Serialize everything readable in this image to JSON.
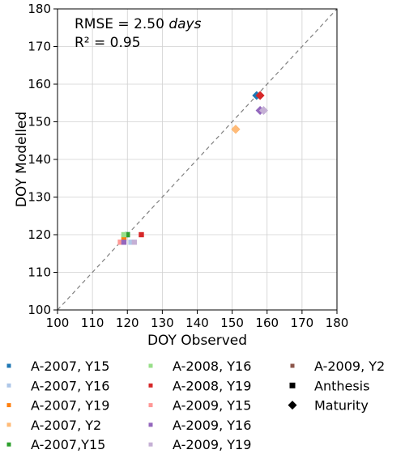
{
  "chart_data": {
    "type": "scatter",
    "title": "",
    "xlabel": "DOY Observed",
    "ylabel": "DOY Modelled",
    "xlim": [
      100,
      180
    ],
    "ylim": [
      100,
      180
    ],
    "xticks": [
      100,
      110,
      120,
      130,
      140,
      150,
      160,
      170,
      180
    ],
    "yticks": [
      100,
      110,
      120,
      130,
      140,
      150,
      160,
      170,
      180
    ],
    "grid": true,
    "reference_line": "1:1 dashed",
    "annotations": {
      "rmse_prefix": "RMSE = 2.50 ",
      "rmse_unit": "days",
      "r2": "R² = 0.95"
    },
    "legend_placement": "below",
    "series": [
      {
        "name": "A-2007, Y15",
        "color": "#1f77b4",
        "anthesis": [
          [
            120,
            120
          ]
        ],
        "maturity": [
          [
            157,
            157
          ]
        ]
      },
      {
        "name": "A-2007, Y16",
        "color": "#aec7e8",
        "anthesis": [
          [
            121,
            118
          ]
        ],
        "maturity": [
          [
            158,
            153
          ]
        ]
      },
      {
        "name": "A-2007, Y19",
        "color": "#ff7f0e",
        "anthesis": [
          [
            119,
            119
          ]
        ],
        "maturity": [
          [
            151,
            148
          ]
        ]
      },
      {
        "name": "A-2007, Y2",
        "color": "#ffbb78",
        "anthesis": [
          [
            118,
            118
          ]
        ],
        "maturity": [
          [
            151,
            148
          ]
        ]
      },
      {
        "name": "A-2007,Y15",
        "color": "#2ca02c",
        "anthesis": [
          [
            120,
            120
          ]
        ],
        "maturity": []
      },
      {
        "name": "A-2008, Y16",
        "color": "#98df8a",
        "anthesis": [
          [
            119,
            120
          ]
        ],
        "maturity": []
      },
      {
        "name": "A-2008, Y19",
        "color": "#d62728",
        "anthesis": [
          [
            124,
            120
          ]
        ],
        "maturity": [
          [
            158,
            157
          ]
        ]
      },
      {
        "name": "A-2009, Y15",
        "color": "#ff9896",
        "anthesis": [
          [
            118,
            118
          ]
        ],
        "maturity": []
      },
      {
        "name": "A-2009, Y16",
        "color": "#9467bd",
        "anthesis": [
          [
            119,
            118
          ]
        ],
        "maturity": [
          [
            158,
            153
          ]
        ]
      },
      {
        "name": "A-2009, Y19",
        "color": "#c5b0d5",
        "anthesis": [
          [
            122,
            118
          ]
        ],
        "maturity": [
          [
            159,
            153
          ]
        ]
      },
      {
        "name": "A-2009, Y2",
        "color": "#8c564b",
        "anthesis": [],
        "maturity": []
      }
    ],
    "marker_legend": [
      {
        "name": "Anthesis",
        "shape": "square"
      },
      {
        "name": "Maturity",
        "shape": "diamond"
      }
    ]
  }
}
